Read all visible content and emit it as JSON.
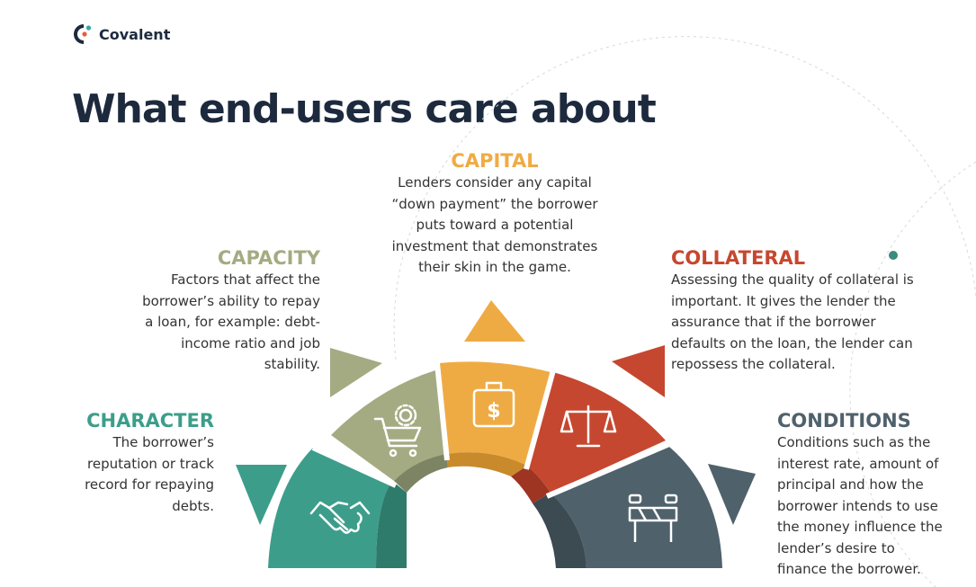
{
  "brand": {
    "name": "Covalent"
  },
  "title": "What end-users care about",
  "colors": {
    "character": "#3c9e8a",
    "capacity": "#a4ab82",
    "capital": "#efab43",
    "collateral": "#c6472f",
    "conditions": "#4f616b",
    "navy": "#1d2a3e"
  },
  "factors": [
    {
      "key": "character",
      "label": "CHARACTER",
      "icon": "handshake-icon",
      "lines": [
        "The borrower’s",
        "reputation or track",
        "record for repaying",
        "debts."
      ]
    },
    {
      "key": "capacity",
      "label": "CAPACITY",
      "icon": "shopping-cart-gear-icon",
      "lines": [
        "Factors that affect the",
        "borrower’s ability to repay",
        "a loan, for example: debt-",
        "income ratio and job",
        "stability."
      ]
    },
    {
      "key": "capital",
      "label": "CAPITAL",
      "icon": "money-bag-icon",
      "lines": [
        "Lenders consider any capital",
        "“down payment” the borrower",
        "puts toward a potential",
        "investment that demonstrates",
        "their skin in the game."
      ]
    },
    {
      "key": "collateral",
      "label": "COLLATERAL",
      "icon": "scales-icon",
      "lines": [
        "Assessing the quality of collateral is",
        "important. It gives the lender the",
        "assurance that if the borrower",
        "defaults on the loan, the lender can",
        "repossess the collateral."
      ]
    },
    {
      "key": "conditions",
      "label": "CONDITIONS",
      "icon": "road-barrier-icon",
      "lines": [
        "Conditions such as the",
        "interest rate, amount of",
        "principal and how the",
        "borrower intends to use",
        "the money influence the",
        "lender’s desire to",
        "finance the borrower."
      ]
    }
  ]
}
